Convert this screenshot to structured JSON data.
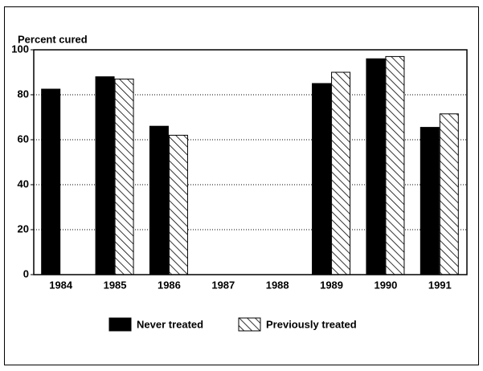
{
  "chart_data": {
    "type": "bar",
    "y_label": "Percent cured",
    "categories": [
      "1984",
      "1985",
      "1986",
      "1987",
      "1988",
      "1989",
      "1990",
      "1991"
    ],
    "series": [
      {
        "name": "Never treated",
        "color": "#000000",
        "hatch": false,
        "values": [
          82.5,
          88,
          66,
          null,
          null,
          85,
          96,
          65.5
        ]
      },
      {
        "name": "Previously treated",
        "color": "#000000",
        "hatch": true,
        "values": [
          null,
          87,
          62,
          null,
          null,
          90,
          97,
          71.5
        ]
      }
    ],
    "ylim": [
      0,
      100
    ],
    "yticks": [
      0,
      20,
      40,
      60,
      80,
      100
    ],
    "grid": true
  }
}
